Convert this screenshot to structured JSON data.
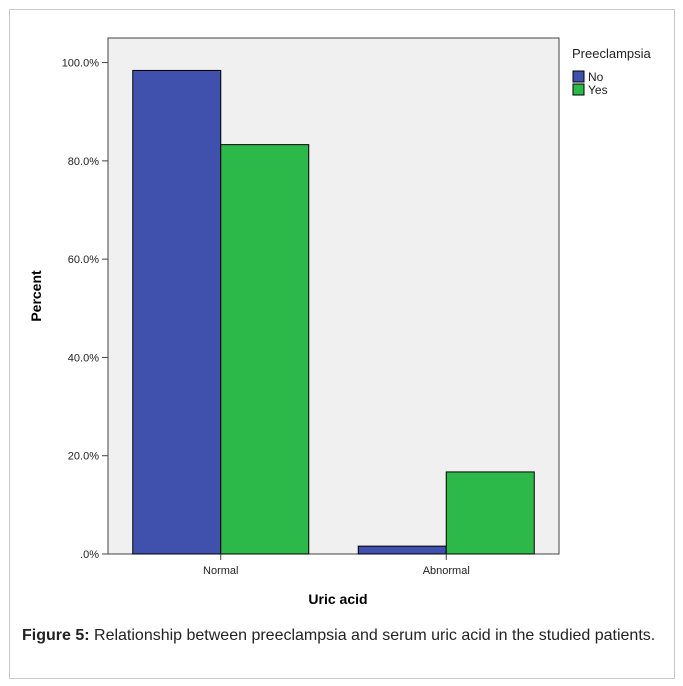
{
  "chart_data": {
    "type": "bar",
    "categories": [
      "Normal",
      "Abnormal"
    ],
    "series": [
      {
        "name": "No",
        "color": "#3f51ad",
        "values": [
          98.4,
          1.6
        ]
      },
      {
        "name": "Yes",
        "color": "#2db84a",
        "values": [
          83.3,
          16.7
        ]
      }
    ],
    "xlabel": "Uric acid",
    "ylabel": "Percent",
    "ylim": [
      0,
      105
    ],
    "yticks": [
      0,
      20,
      40,
      60,
      80,
      100
    ],
    "ytick_labels": [
      ".0%",
      "20.0%",
      "40.0%",
      "60.0%",
      "80.0%",
      "100.0%"
    ],
    "legend": {
      "title": "Preeclampsia",
      "placement": "top-right, outside plot"
    },
    "grid": false,
    "plot_background": "#f0f0f0"
  },
  "caption": {
    "label": "Figure 5:",
    "text": " Relationship between preeclampsia and serum uric acid in the studied patients."
  }
}
